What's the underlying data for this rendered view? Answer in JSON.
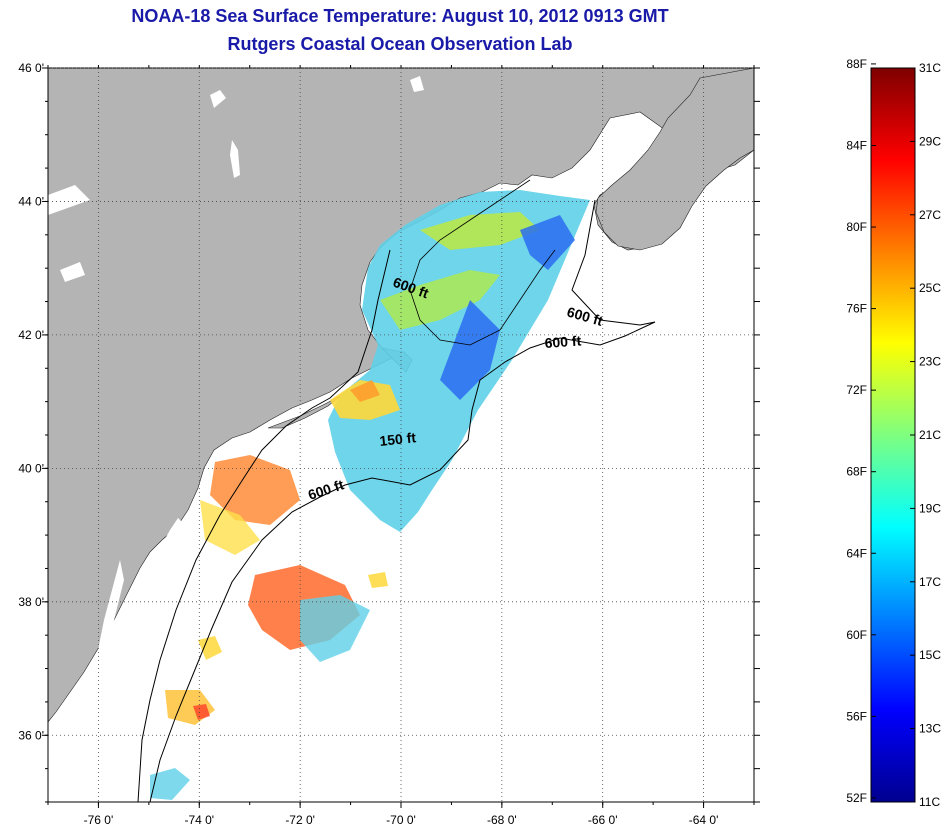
{
  "header": {
    "title": "NOAA-18 Sea Surface Temperature:  August 10, 2012 0913 GMT",
    "subtitle": "Rutgers Coastal Ocean Observation Lab"
  },
  "map": {
    "lon_range": [
      -77,
      -63
    ],
    "lat_range": [
      35,
      46
    ],
    "lon_ticks": [
      "-76 0'",
      "-74 0'",
      "-72 0'",
      "-70 0'",
      "-68 0'",
      "-66 0'",
      "-64 0'"
    ],
    "lat_ticks": [
      "46 0'",
      "44 0'",
      "42 0'",
      "40 0'",
      "38 0'",
      "36 0'"
    ],
    "grid": "dotted",
    "land_color": "#b4b4b4",
    "ocean_color": "#ffffff",
    "contour_labels": [
      "600 ft",
      "600 ft",
      "600 ft",
      "600 ft",
      "150 ft"
    ]
  },
  "colorbar": {
    "fahrenheit_ticks": [
      "88F",
      "84F",
      "80F",
      "76F",
      "72F",
      "68F",
      "64F",
      "60F",
      "56F",
      "52F"
    ],
    "celsius_ticks": [
      "31C",
      "29C",
      "27C",
      "25C",
      "23C",
      "21C",
      "19C",
      "17C",
      "15C",
      "13C",
      "11C"
    ],
    "colormap": "jet",
    "range_c": [
      11,
      31
    ]
  }
}
